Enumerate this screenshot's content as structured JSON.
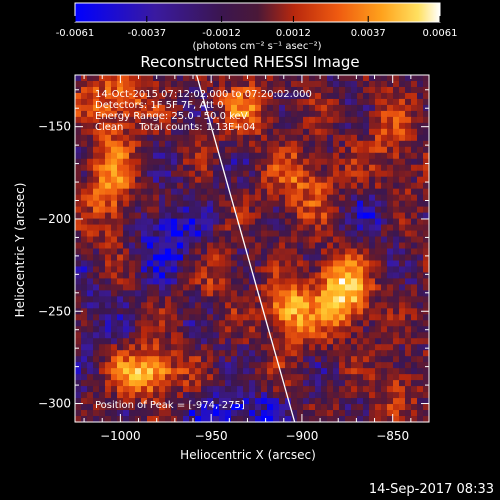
{
  "colorbar": {
    "tick_labels": [
      "-0.0061",
      "-0.0037",
      "-0.0012",
      "0.0012",
      "0.0037",
      "0.0061"
    ],
    "tick_values": [
      -0.0061,
      -0.0037,
      -0.0012,
      0.0012,
      0.0037,
      0.0061
    ],
    "range": [
      -0.0061,
      0.0061
    ],
    "units_label": "(photons cm⁻² s⁻¹ asec⁻²)"
  },
  "chart_data": {
    "type": "heatmap",
    "title": "Reconstructed RHESSI Image",
    "xlabel": "Heliocentric X (arcsec)",
    "ylabel": "Heliocentric Y (arcsec)",
    "xlim": [
      -1025,
      -830
    ],
    "ylim": [
      -310,
      -122
    ],
    "x_ticks": [
      -1000,
      -950,
      -900,
      -850
    ],
    "x_tick_labels": [
      "−1000",
      "−950",
      "−900",
      "−850"
    ],
    "y_ticks": [
      -300,
      -250,
      -200,
      -150
    ],
    "y_tick_labels": [
      "−300",
      "−250",
      "−200",
      "−150"
    ],
    "colormap": [
      "#0000ff",
      "#3a1aa0",
      "#3b1750",
      "#6a1a2a",
      "#b8280d",
      "#ef5a10",
      "#ff9a18",
      "#ffd83c",
      "#ffffff"
    ],
    "annotations": [
      "14-Oct-2015 07:12:02.000 to 07:20:02.000",
      "Detectors: 1F 5F 7F, Att 0",
      "Energy Range: 25.0 - 50.0 keV",
      "Clean     Total counts: 1.13E+04"
    ],
    "peak_label": "Position of Peak = [-974,-275]",
    "peak_position": [
      -974,
      -275
    ],
    "limb_line": [
      [
        -958,
        -122
      ],
      [
        -904,
        -310
      ]
    ],
    "hot_regions": [
      {
        "x": -878,
        "y": -240,
        "sx": 10,
        "sy": 14,
        "amp": 1.0
      },
      {
        "x": -907,
        "y": -250,
        "sx": 9,
        "sy": 12,
        "amp": 0.8
      },
      {
        "x": -985,
        "y": -283,
        "sx": 12,
        "sy": 9,
        "amp": 0.9
      },
      {
        "x": -1005,
        "y": -180,
        "sx": 9,
        "sy": 22,
        "amp": 0.6
      },
      {
        "x": -1002,
        "y": -135,
        "sx": 14,
        "sy": 10,
        "amp": 0.5
      },
      {
        "x": -930,
        "y": -140,
        "sx": 12,
        "sy": 10,
        "amp": 0.45
      },
      {
        "x": -900,
        "y": -180,
        "sx": 14,
        "sy": 14,
        "amp": 0.45
      },
      {
        "x": -945,
        "y": -230,
        "sx": 8,
        "sy": 12,
        "amp": 0.3
      },
      {
        "x": -850,
        "y": -160,
        "sx": 10,
        "sy": 18,
        "amp": 0.35
      },
      {
        "x": -848,
        "y": -290,
        "sx": 8,
        "sy": 10,
        "amp": 0.4
      }
    ],
    "cold_regions": [
      {
        "x": -975,
        "y": -210,
        "sx": 14,
        "sy": 14,
        "amp": 0.8
      },
      {
        "x": -935,
        "y": -305,
        "sx": 18,
        "sy": 8,
        "amp": 0.8
      },
      {
        "x": -862,
        "y": -200,
        "sx": 10,
        "sy": 10,
        "amp": 0.4
      },
      {
        "x": -1015,
        "y": -250,
        "sx": 8,
        "sy": 14,
        "amp": 0.4
      }
    ]
  },
  "timestamp": "14-Sep-2017 08:33"
}
